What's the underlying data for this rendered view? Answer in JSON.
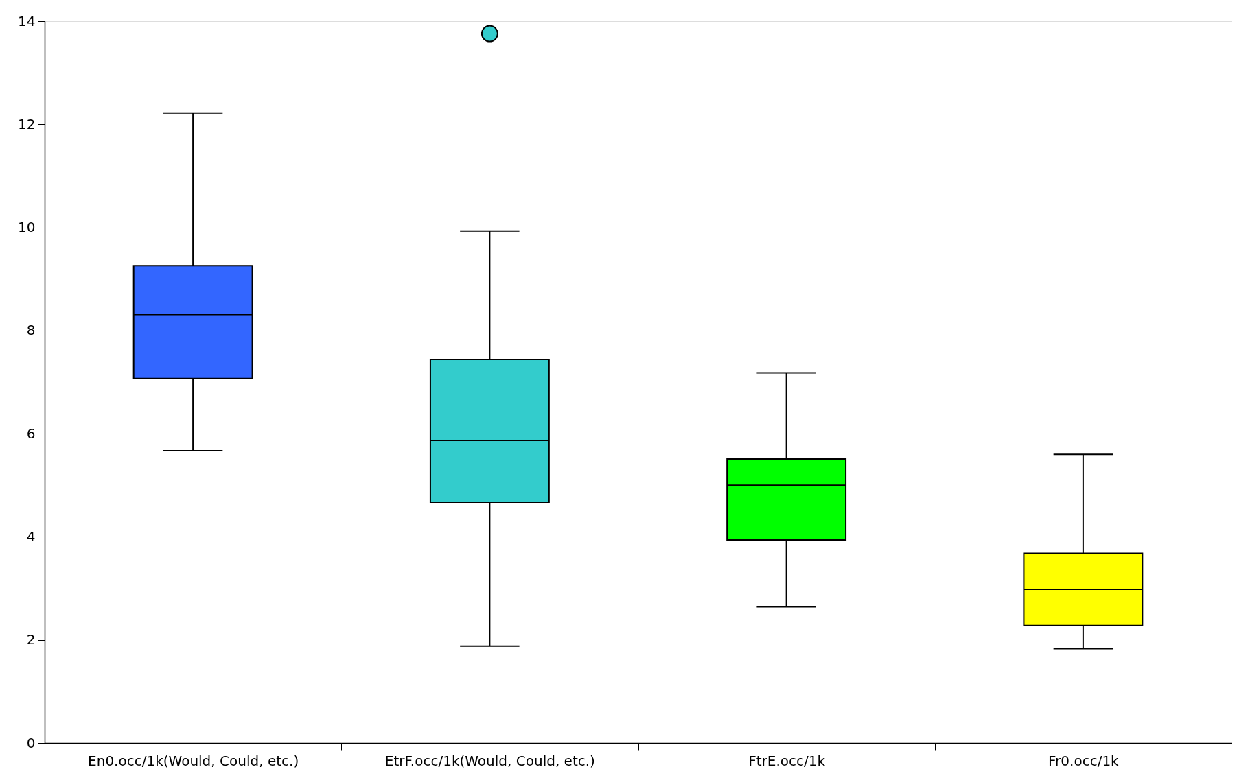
{
  "chart_data": {
    "type": "box",
    "categories": [
      "En0.occ/1k(Would, Could, etc.)",
      "EtrF.occ/1k(Would, Could, etc.)",
      "FtrE.occ/1k",
      "Fr0.occ/1k"
    ],
    "colors": [
      "#3366ff",
      "#33cccc",
      "#00ff00",
      "#ffff00"
    ],
    "boxes": [
      {
        "low": 5.67,
        "q1": 7.07,
        "median": 8.31,
        "q3": 9.26,
        "high": 12.22
      },
      {
        "low": 1.88,
        "q1": 4.67,
        "median": 5.87,
        "q3": 7.44,
        "high": 9.93,
        "outliers": [
          13.76
        ]
      },
      {
        "low": 2.64,
        "q1": 3.94,
        "median": 5.0,
        "q3": 5.51,
        "high": 7.18
      },
      {
        "low": 1.83,
        "q1": 2.28,
        "median": 2.98,
        "q3": 3.68,
        "high": 5.6
      }
    ],
    "ylim": [
      0,
      14
    ],
    "yticks": [
      0,
      2,
      4,
      6,
      8,
      10,
      12,
      14
    ],
    "grid": false
  }
}
